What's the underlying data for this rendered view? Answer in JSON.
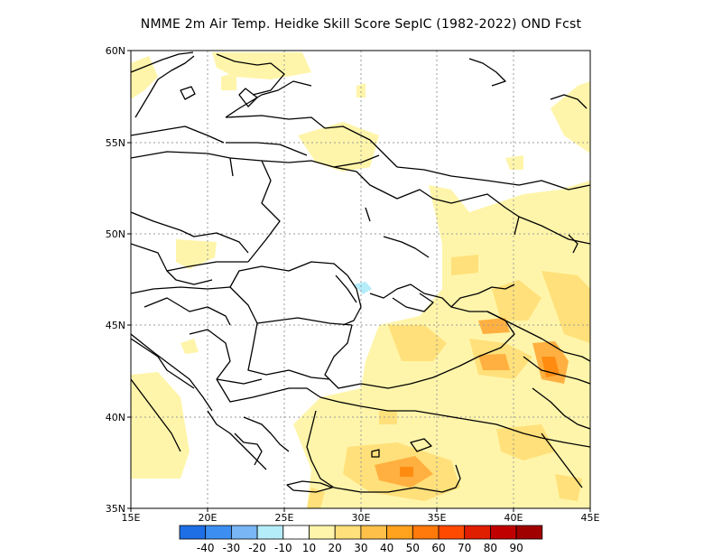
{
  "title": "NMME  2m Air Temp. Heidke Skill Score SepIC (1982-2022) OND Fcst",
  "map": {
    "lon_range": [
      15,
      45
    ],
    "lat_range": [
      35,
      60
    ],
    "x_ticks": [
      {
        "value": 15,
        "label": "15E"
      },
      {
        "value": 20,
        "label": "20E"
      },
      {
        "value": 25,
        "label": "25E"
      },
      {
        "value": 30,
        "label": "30E"
      },
      {
        "value": 35,
        "label": "35E"
      },
      {
        "value": 40,
        "label": "40E"
      },
      {
        "value": 45,
        "label": "45E"
      }
    ],
    "y_ticks": [
      {
        "value": 35,
        "label": "35N"
      },
      {
        "value": 40,
        "label": "40N"
      },
      {
        "value": 45,
        "label": "45N"
      },
      {
        "value": 50,
        "label": "50N"
      },
      {
        "value": 55,
        "label": "55N"
      },
      {
        "value": 60,
        "label": "60N"
      }
    ],
    "gridlines": true
  },
  "colorbar": {
    "colors": [
      "#1e6fe6",
      "#3c8ff0",
      "#78b6f5",
      "#b4ecfa",
      "#ffffff",
      "#fff5aa",
      "#ffe07a",
      "#ffc04a",
      "#ffa21e",
      "#ff7a0a",
      "#ff4a00",
      "#e01e00",
      "#c00000",
      "#a00000"
    ],
    "labels": [
      "-40",
      "-30",
      "-20",
      "-10",
      "10",
      "20",
      "30",
      "40",
      "50",
      "60",
      "70",
      "80",
      "90"
    ]
  }
}
